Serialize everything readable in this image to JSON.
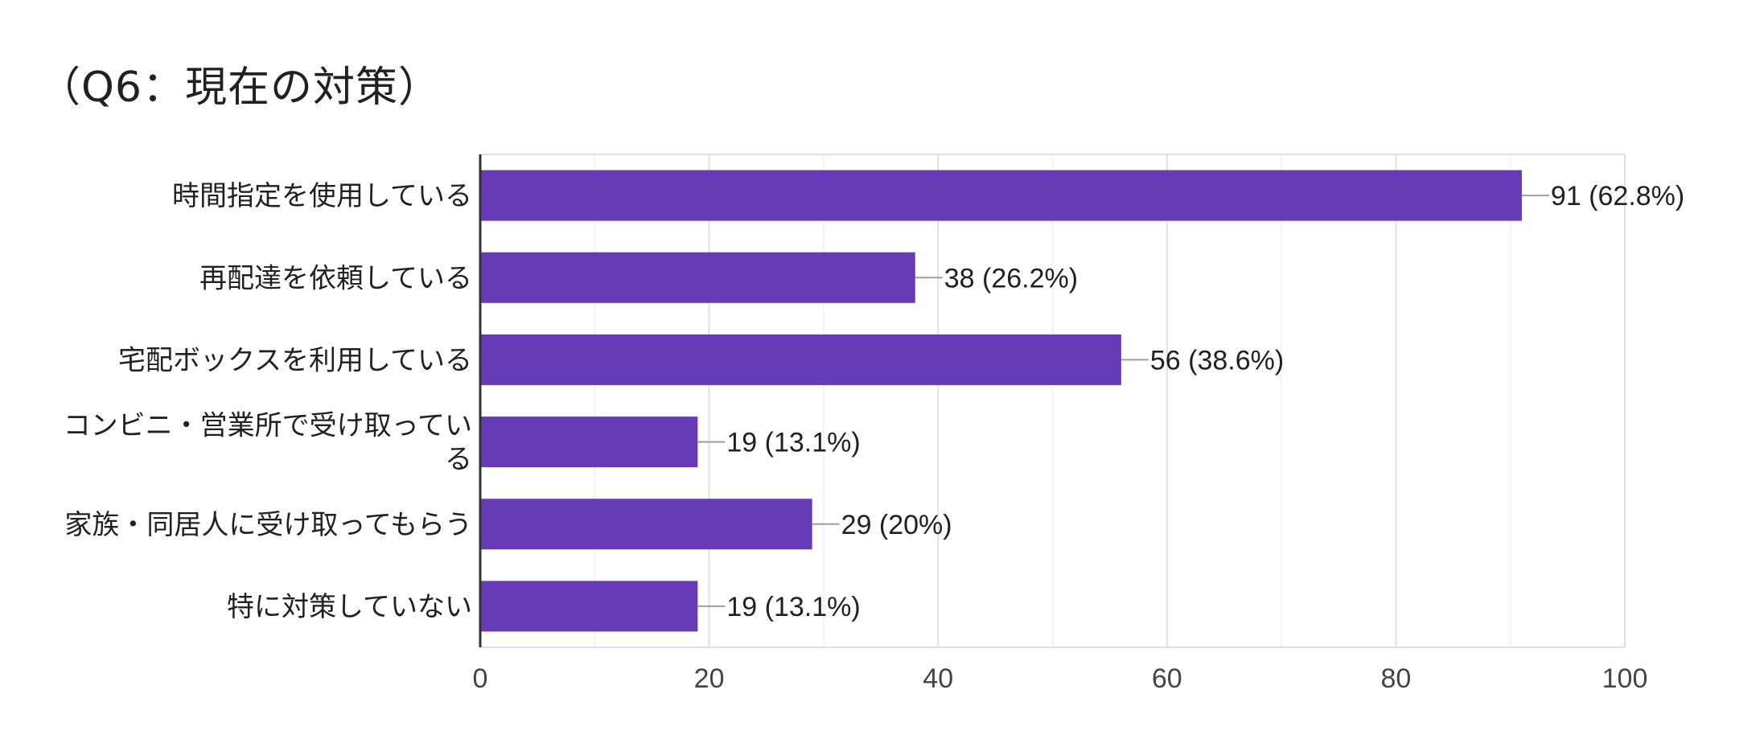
{
  "chart_data": {
    "type": "bar",
    "orientation": "horizontal",
    "title": "（Q6：現在の対策）",
    "categories": [
      "時間指定を使用している",
      "再配達を依頼している",
      "宅配ボックスを利用している",
      "コンビニ・営業所で受け取ってい\nる",
      "家族・同居人に受け取ってもらう",
      "特に対策していない"
    ],
    "values": [
      91,
      38,
      56,
      19,
      29,
      19
    ],
    "data_labels": [
      "91 (62.8%)",
      "38 (26.2%)",
      "56 (38.6%)",
      "19 (13.1%)",
      "29 (20%)",
      "19 (13.1%)"
    ],
    "xlim": [
      0,
      100
    ],
    "x_ticks": [
      0,
      20,
      40,
      60,
      80,
      100
    ],
    "x_tick_labels": [
      "0",
      "20",
      "40",
      "60",
      "80",
      "100"
    ],
    "xlabel": "",
    "ylabel": "",
    "grid": true,
    "legend": "none",
    "colors": {
      "bar": "#673ab7",
      "grid_major": "#e0e0e0",
      "grid_minor": "#f3f3f3",
      "axis": "#333333",
      "leader": "#9e9e9e",
      "label": "#212121",
      "tick_label": "#444444"
    }
  }
}
